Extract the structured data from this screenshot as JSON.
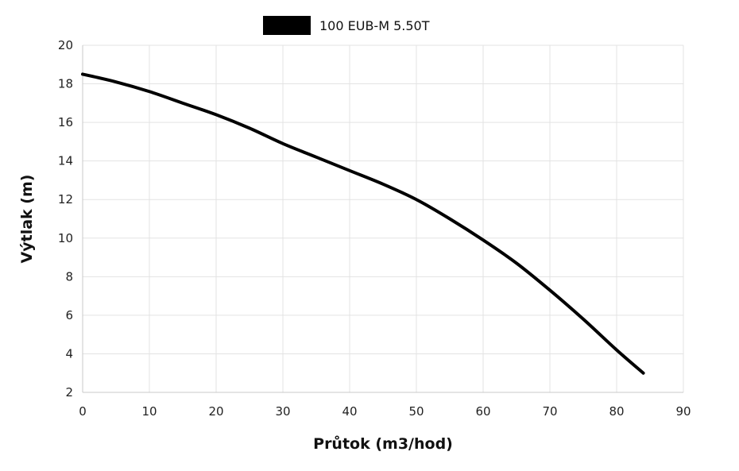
{
  "chart_data": {
    "type": "line",
    "title": "",
    "xlabel": "Průtok (m3/hod)",
    "ylabel": "Výtlak (m)",
    "xlim": [
      0,
      90
    ],
    "ylim": [
      2,
      20
    ],
    "xticks": [
      0,
      10,
      20,
      30,
      40,
      50,
      60,
      70,
      80,
      90
    ],
    "yticks": [
      2,
      4,
      6,
      8,
      10,
      12,
      14,
      16,
      18,
      20
    ],
    "grid": true,
    "legend_position": "top-center",
    "series": [
      {
        "name": "100 EUB-M 5.50T",
        "color": "#000000",
        "x": [
          0,
          5,
          10,
          15,
          20,
          25,
          30,
          35,
          40,
          45,
          50,
          55,
          60,
          65,
          70,
          75,
          80,
          84
        ],
        "y": [
          18.5,
          18.1,
          17.6,
          17.0,
          16.4,
          15.7,
          14.9,
          14.2,
          13.5,
          12.8,
          12.0,
          11.0,
          9.9,
          8.7,
          7.3,
          5.8,
          4.2,
          3.0
        ]
      }
    ]
  }
}
